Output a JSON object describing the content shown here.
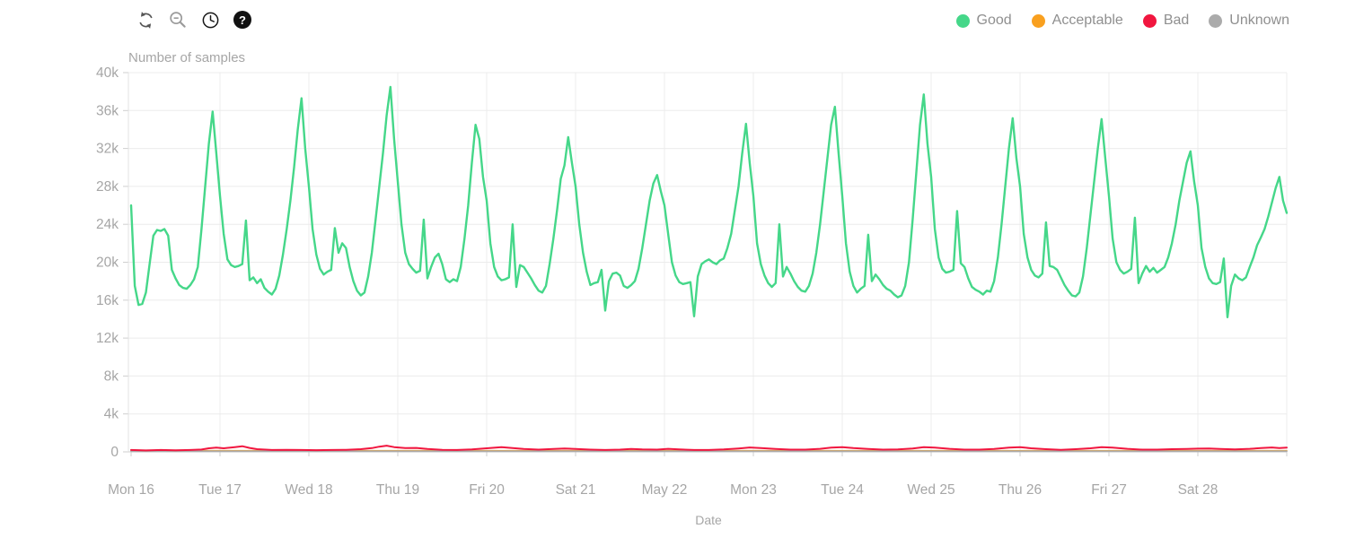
{
  "toolbar": {
    "icons": [
      "refresh",
      "zoom-out",
      "clock",
      "help"
    ],
    "help_glyph": "?"
  },
  "legend": {
    "items": [
      {
        "label": "Good",
        "color": "#45d789"
      },
      {
        "label": "Acceptable",
        "color": "#f9a01f"
      },
      {
        "label": "Bad",
        "color": "#f1163f"
      },
      {
        "label": "Unknown",
        "color": "#ababab"
      }
    ],
    "text_color": "#8f8f8f"
  },
  "chart_data": {
    "type": "line",
    "title": "Number of samples",
    "xlabel": "Date",
    "values_unit": "thousands of samples",
    "x_unit": "hours since Mon 16 00:00",
    "x_range_hours": [
      0,
      312
    ],
    "ylim_k": [
      0,
      40
    ],
    "y_ticks": [
      "0",
      "4k",
      "8k",
      "12k",
      "16k",
      "20k",
      "24k",
      "28k",
      "32k",
      "36k",
      "40k"
    ],
    "x_ticks": [
      "Mon 16",
      "Tue 17",
      "Wed 18",
      "Thu 19",
      "Fri 20",
      "Sat 21",
      "May 22",
      "Mon 23",
      "Tue 24",
      "Wed 25",
      "Thu 26",
      "Fri 27",
      "Sat 28"
    ],
    "grid": true,
    "legend_position": "top-right",
    "series": [
      {
        "name": "Good",
        "color": "#45d789",
        "sampling": "hourly",
        "days": [
          {
            "label": "Mon 16",
            "values_k": [
              26.0,
              17.5,
              15.5,
              15.6,
              16.8,
              19.8,
              22.8,
              23.4,
              23.3,
              23.5,
              22.8,
              19.2,
              18.3,
              17.6,
              17.3,
              17.2,
              17.6,
              18.2,
              19.5,
              23.5,
              28.0,
              32.5,
              35.9,
              31.5
            ]
          },
          {
            "label": "Tue 17",
            "values_k": [
              27.0,
              23.0,
              20.3,
              19.7,
              19.5,
              19.6,
              19.8,
              24.4,
              18.1,
              18.4,
              17.8,
              18.2,
              17.3,
              16.9,
              16.6,
              17.2,
              18.6,
              20.8,
              23.5,
              26.5,
              30.0,
              34.0,
              37.3,
              32.0
            ]
          },
          {
            "label": "Wed 18",
            "values_k": [
              28.0,
              23.5,
              20.8,
              19.3,
              18.7,
              19.0,
              19.2,
              23.6,
              21.0,
              22.0,
              21.5,
              19.5,
              18.0,
              17.0,
              16.5,
              16.8,
              18.5,
              21.0,
              24.5,
              28.0,
              31.5,
              35.5,
              38.5,
              33.0
            ]
          },
          {
            "label": "Thu 19",
            "values_k": [
              28.5,
              24.0,
              21.0,
              19.8,
              19.3,
              18.9,
              19.1,
              24.5,
              18.3,
              19.5,
              20.5,
              20.9,
              19.8,
              18.2,
              17.9,
              18.2,
              18.0,
              19.5,
              22.5,
              26.0,
              30.5,
              34.5,
              33.0,
              29.0
            ]
          },
          {
            "label": "Fri 20",
            "values_k": [
              26.5,
              22.0,
              19.5,
              18.5,
              18.1,
              18.2,
              18.4,
              24.0,
              17.4,
              19.7,
              19.5,
              18.9,
              18.3,
              17.6,
              17.0,
              16.8,
              17.5,
              19.8,
              22.5,
              25.5,
              28.8,
              30.2,
              33.2,
              30.5
            ]
          },
          {
            "label": "Sat 21",
            "values_k": [
              28.0,
              24.0,
              21.0,
              19.0,
              17.6,
              17.8,
              17.9,
              19.2,
              14.9,
              18.0,
              18.8,
              18.9,
              18.6,
              17.5,
              17.3,
              17.6,
              18.0,
              19.3,
              21.5,
              24.0,
              26.5,
              28.3,
              29.2,
              27.5
            ]
          },
          {
            "label": "May 22",
            "values_k": [
              26.0,
              23.0,
              20.0,
              18.6,
              17.9,
              17.7,
              17.8,
              17.9,
              14.3,
              18.5,
              19.8,
              20.1,
              20.3,
              20.0,
              19.8,
              20.2,
              20.4,
              21.5,
              23.0,
              25.5,
              28.0,
              31.5,
              34.6,
              30.5
            ]
          },
          {
            "label": "Mon 23",
            "values_k": [
              27.0,
              22.0,
              19.8,
              18.6,
              17.8,
              17.4,
              17.8,
              24.0,
              18.5,
              19.5,
              18.8,
              18.0,
              17.4,
              17.0,
              16.9,
              17.5,
              18.8,
              21.0,
              24.0,
              27.5,
              31.0,
              34.5,
              36.4,
              31.5
            ]
          },
          {
            "label": "Tue 24",
            "values_k": [
              27.0,
              22.0,
              19.0,
              17.5,
              16.8,
              17.2,
              17.5,
              22.9,
              18.0,
              18.7,
              18.2,
              17.6,
              17.2,
              17.0,
              16.6,
              16.3,
              16.5,
              17.5,
              20.0,
              24.5,
              29.5,
              34.5,
              37.7,
              32.5
            ]
          },
          {
            "label": "Wed 25",
            "values_k": [
              29.0,
              23.5,
              20.5,
              19.3,
              18.9,
              19.0,
              19.2,
              25.4,
              19.9,
              19.5,
              18.3,
              17.4,
              17.1,
              16.9,
              16.6,
              17.0,
              16.9,
              18.0,
              20.5,
              24.0,
              28.0,
              32.0,
              35.2,
              31.0
            ]
          },
          {
            "label": "Thu 26",
            "values_k": [
              28.0,
              23.0,
              20.5,
              19.2,
              18.6,
              18.4,
              18.8,
              24.2,
              19.6,
              19.5,
              19.2,
              18.4,
              17.6,
              17.0,
              16.5,
              16.4,
              16.8,
              18.5,
              21.5,
              25.0,
              28.5,
              32.0,
              35.1,
              31.0
            ]
          },
          {
            "label": "Fri 27",
            "values_k": [
              27.0,
              22.5,
              20.0,
              19.2,
              18.8,
              19.0,
              19.3,
              24.7,
              17.8,
              18.8,
              19.6,
              19.0,
              19.4,
              18.9,
              19.2,
              19.5,
              20.5,
              22.0,
              24.0,
              26.5,
              28.5,
              30.5,
              31.7,
              28.5
            ]
          },
          {
            "label": "Sat 28",
            "values_k": [
              26.0,
              21.5,
              19.5,
              18.3,
              17.8,
              17.7,
              17.9,
              20.4,
              14.2,
              17.5,
              18.7,
              18.3,
              18.1,
              18.4,
              19.5,
              20.5,
              21.8,
              22.6,
              23.5,
              24.8,
              26.3,
              27.8,
              29.0,
              26.5
            ]
          }
        ],
        "end_value_k": 25.2
      },
      {
        "name": "Acceptable",
        "color": "#f9a01f",
        "sampling": "points",
        "points_k": [
          [
            0,
            0.12
          ],
          [
            312,
            0.12
          ]
        ]
      },
      {
        "name": "Bad",
        "color": "#f1163f",
        "sampling": "points",
        "points_k": [
          [
            0,
            0.2
          ],
          [
            4,
            0.15
          ],
          [
            8,
            0.2
          ],
          [
            12,
            0.16
          ],
          [
            16,
            0.2
          ],
          [
            19,
            0.25
          ],
          [
            21,
            0.38
          ],
          [
            23,
            0.45
          ],
          [
            25,
            0.38
          ],
          [
            28,
            0.5
          ],
          [
            30,
            0.6
          ],
          [
            32,
            0.42
          ],
          [
            34,
            0.28
          ],
          [
            38,
            0.2
          ],
          [
            42,
            0.22
          ],
          [
            46,
            0.2
          ],
          [
            50,
            0.18
          ],
          [
            54,
            0.2
          ],
          [
            58,
            0.22
          ],
          [
            62,
            0.28
          ],
          [
            65,
            0.4
          ],
          [
            67,
            0.55
          ],
          [
            69,
            0.65
          ],
          [
            71,
            0.5
          ],
          [
            74,
            0.4
          ],
          [
            77,
            0.42
          ],
          [
            80,
            0.3
          ],
          [
            84,
            0.22
          ],
          [
            88,
            0.2
          ],
          [
            92,
            0.26
          ],
          [
            96,
            0.38
          ],
          [
            100,
            0.5
          ],
          [
            103,
            0.4
          ],
          [
            106,
            0.3
          ],
          [
            110,
            0.24
          ],
          [
            114,
            0.3
          ],
          [
            117,
            0.36
          ],
          [
            120,
            0.3
          ],
          [
            124,
            0.24
          ],
          [
            128,
            0.2
          ],
          [
            132,
            0.24
          ],
          [
            135,
            0.3
          ],
          [
            138,
            0.26
          ],
          [
            142,
            0.24
          ],
          [
            145,
            0.32
          ],
          [
            148,
            0.26
          ],
          [
            152,
            0.2
          ],
          [
            156,
            0.2
          ],
          [
            160,
            0.26
          ],
          [
            164,
            0.36
          ],
          [
            167,
            0.46
          ],
          [
            170,
            0.4
          ],
          [
            174,
            0.3
          ],
          [
            178,
            0.24
          ],
          [
            182,
            0.24
          ],
          [
            186,
            0.32
          ],
          [
            189,
            0.44
          ],
          [
            192,
            0.5
          ],
          [
            195,
            0.4
          ],
          [
            199,
            0.3
          ],
          [
            203,
            0.24
          ],
          [
            207,
            0.26
          ],
          [
            211,
            0.36
          ],
          [
            214,
            0.5
          ],
          [
            217,
            0.44
          ],
          [
            221,
            0.32
          ],
          [
            225,
            0.24
          ],
          [
            229,
            0.24
          ],
          [
            233,
            0.3
          ],
          [
            237,
            0.45
          ],
          [
            240,
            0.5
          ],
          [
            243,
            0.38
          ],
          [
            247,
            0.28
          ],
          [
            251,
            0.22
          ],
          [
            255,
            0.28
          ],
          [
            259,
            0.38
          ],
          [
            262,
            0.5
          ],
          [
            265,
            0.44
          ],
          [
            269,
            0.32
          ],
          [
            273,
            0.24
          ],
          [
            277,
            0.24
          ],
          [
            281,
            0.28
          ],
          [
            285,
            0.3
          ],
          [
            288,
            0.34
          ],
          [
            291,
            0.36
          ],
          [
            294,
            0.3
          ],
          [
            298,
            0.26
          ],
          [
            302,
            0.32
          ],
          [
            305,
            0.4
          ],
          [
            308,
            0.46
          ],
          [
            310,
            0.4
          ],
          [
            312,
            0.44
          ]
        ]
      },
      {
        "name": "Unknown",
        "color": "#ababab",
        "sampling": "points",
        "points_k": [
          [
            0,
            0.07
          ],
          [
            312,
            0.07
          ]
        ]
      }
    ]
  },
  "style": {
    "grid_color": "#ececec",
    "axis_color": "#cfcfcf",
    "label_color": "#a6a6a6"
  }
}
